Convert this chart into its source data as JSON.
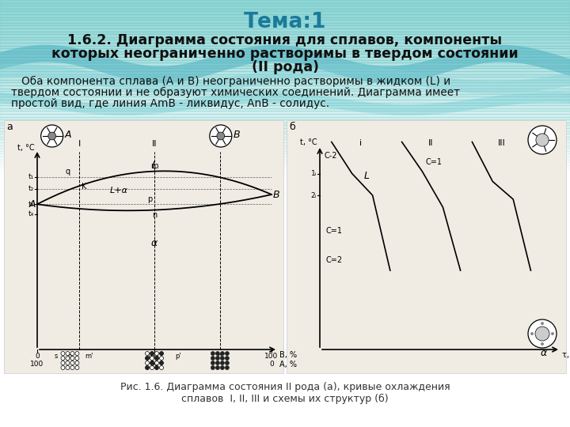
{
  "title": "Тема:1",
  "subtitle_line1": "1.6.2. Диаграмма состояния для сплавов, компоненты",
  "subtitle_line2": "которых неограниченно растворимы в твердом состоянии",
  "subtitle_line3": "(II рода)",
  "body_line1": "   Оба компонента сплава (А и В) неограниченно растворимы в жидком (L) и",
  "body_line2": "твердом состоянии и не образуют химических соединений. Диаграмма имеет",
  "body_line3": "простой вид, где линия АmВ - ликвидус, АnВ - солидус.",
  "caption_line1": "Рис. 1.6. Диаграмма состояния II рода (а), кривые охлаждения",
  "caption_line2": "сплавов  I, II, III и схемы их структур (б)",
  "title_color": "#1a7a9a",
  "subtitle_color": "#111111",
  "body_color": "#111111",
  "caption_color": "#333333",
  "teal_top": "#7ecece",
  "teal_mid": "#5ab8c8",
  "teal_light": "#b0e0e8"
}
